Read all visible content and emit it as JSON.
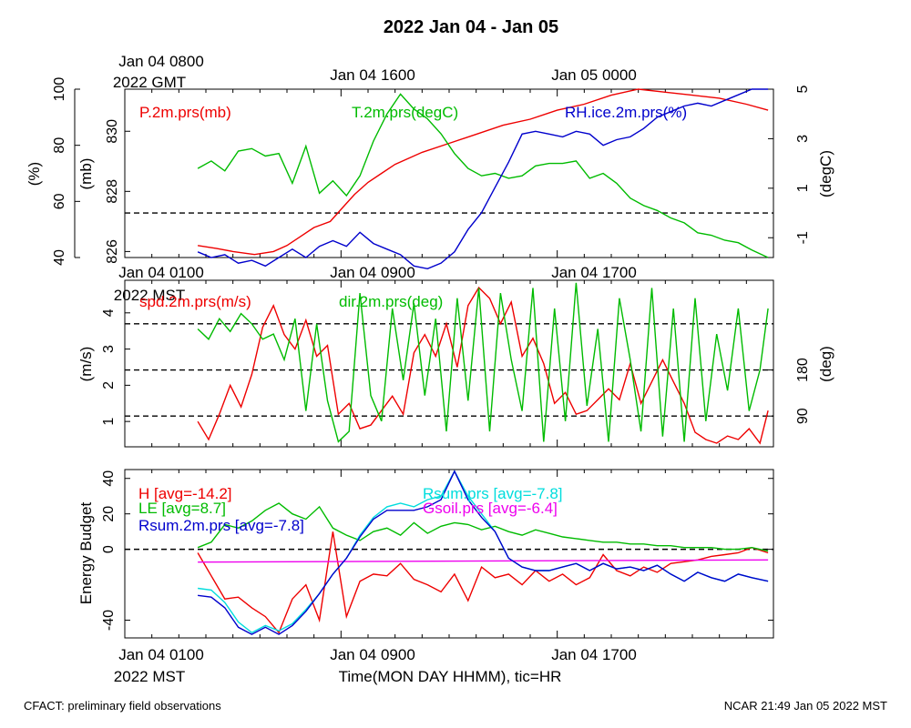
{
  "title": "2022 Jan 04 - Jan 05",
  "footer": {
    "left": "CFACT: preliminary field observations",
    "right": "NCAR 21:49 Jan 05 2022 MST"
  },
  "gmt_axis": {
    "labels": [
      "Jan 04 0800",
      "Jan 04 1600",
      "Jan 05 0000"
    ],
    "year_label": "2022 GMT"
  },
  "mst_axis": {
    "labels": [
      "Jan 04 0100",
      "Jan 04 0900",
      "Jan 04 1700"
    ],
    "year_label": "2022 MST"
  },
  "xlabel": "Time(MON DAY HHMM), tic=HR",
  "colors": {
    "red": "#ee0000",
    "green": "#00bb00",
    "blue": "#0000cc",
    "cyan": "#00dddd",
    "magenta": "#ee00ee"
  },
  "chart_data": [
    {
      "type": "line",
      "panel": "top",
      "x_unit": "hours since Jan 04 0100 MST",
      "xlim": [
        0,
        24
      ],
      "axes": {
        "pressure": {
          "label": "(mb)",
          "ticks": [
            "826",
            "828",
            "830"
          ],
          "ylim": [
            825.8,
            831.4
          ]
        },
        "rh": {
          "label": "(%)",
          "ticks": [
            "40",
            "60",
            "80",
            "100"
          ],
          "ylim": [
            40,
            100
          ]
        },
        "temperature": {
          "label": "(degC)",
          "ticks": [
            "-1",
            "1",
            "3",
            "5"
          ],
          "ylim": [
            -1.8,
            5
          ]
        }
      },
      "reference_line": 0,
      "series": [
        {
          "name": "P.2m.prs(mb)",
          "axis": "pressure",
          "color": "#ee0000",
          "x": [
            2.7,
            3.4,
            4,
            4.8,
            5.5,
            6,
            6.5,
            7,
            7.6,
            8,
            8.5,
            9,
            9.5,
            10,
            11,
            12,
            13,
            14,
            15,
            16,
            17,
            18,
            19,
            20,
            21,
            22,
            23,
            23.8
          ],
          "values": [
            826.2,
            826.1,
            826,
            825.9,
            826,
            826.2,
            826.5,
            826.8,
            827,
            827.4,
            827.9,
            828.3,
            828.6,
            828.9,
            829.3,
            829.6,
            829.9,
            830.2,
            830.4,
            830.7,
            830.9,
            831.2,
            831.4,
            831.3,
            831.2,
            831.1,
            830.9,
            830.7
          ]
        },
        {
          "name": "T.2m.prs(degC)",
          "axis": "temperature",
          "color": "#00bb00",
          "x": [
            2.7,
            3.2,
            3.7,
            4.2,
            4.7,
            5.2,
            5.7,
            6.2,
            6.7,
            7.2,
            7.7,
            8.2,
            8.7,
            9.2,
            9.7,
            10.2,
            10.7,
            11.2,
            11.7,
            12.2,
            12.7,
            13.2,
            13.7,
            14.2,
            14.7,
            15.2,
            15.7,
            16.2,
            16.7,
            17.2,
            17.7,
            18.2,
            18.7,
            19.2,
            19.7,
            20.2,
            20.7,
            21.2,
            21.7,
            22.2,
            22.7,
            23.2,
            23.8
          ],
          "values": [
            1.8,
            2.1,
            1.7,
            2.5,
            2.6,
            2.3,
            2.4,
            1.2,
            2.7,
            0.8,
            1.3,
            0.7,
            1.5,
            2.9,
            4,
            4.8,
            4.2,
            3.8,
            3.2,
            2.4,
            1.8,
            1.5,
            1.6,
            1.4,
            1.5,
            1.9,
            2,
            2,
            2.1,
            1.4,
            1.6,
            1.2,
            0.6,
            0.3,
            0.1,
            -0.2,
            -0.4,
            -0.8,
            -0.9,
            -1.1,
            -1.2,
            -1.5,
            -1.8
          ]
        },
        {
          "name": "RH.ice.2m.prs(%)",
          "axis": "rh",
          "color": "#0000cc",
          "x": [
            2.7,
            3.2,
            3.7,
            4.2,
            4.7,
            5.2,
            5.7,
            6.2,
            6.7,
            7.2,
            7.7,
            8.2,
            8.7,
            9.2,
            9.7,
            10.2,
            10.7,
            11.2,
            11.7,
            12.2,
            12.7,
            13.2,
            13.7,
            14.2,
            14.7,
            15.2,
            15.7,
            16.2,
            16.7,
            17.2,
            17.7,
            18.2,
            18.7,
            19.2,
            19.7,
            20.2,
            20.7,
            21.2,
            21.7,
            22.2,
            22.7,
            23.2,
            23.8
          ],
          "values": [
            42,
            40,
            41,
            38,
            39,
            37,
            40,
            43,
            40,
            44,
            46,
            44,
            49,
            45,
            43,
            41,
            37,
            36,
            38,
            42,
            50,
            56,
            65,
            74,
            84,
            85,
            84,
            83,
            85,
            84,
            80,
            82,
            83,
            86,
            90,
            92,
            94,
            95,
            94,
            96,
            98,
            100,
            100
          ]
        }
      ]
    },
    {
      "type": "line",
      "panel": "middle",
      "x_unit": "hours since Jan 04 0100 MST",
      "xlim": [
        0,
        24
      ],
      "axes": {
        "speed": {
          "label": "(m/s)",
          "ticks": [
            "1",
            "2",
            "3",
            "4"
          ],
          "ylim": [
            0.3,
            4.9
          ]
        },
        "direction": {
          "label": "(deg)",
          "ticks": [
            "90",
            "180"
          ],
          "ylim": [
            30,
            355
          ]
        }
      },
      "reference_lines_deg": [
        90,
        180,
        270
      ],
      "series": [
        {
          "name": "spd.2m.prs(m/s)",
          "axis": "speed",
          "color": "#ee0000",
          "x": [
            2.7,
            3.1,
            3.5,
            3.9,
            4.3,
            4.7,
            5.1,
            5.5,
            5.9,
            6.3,
            6.7,
            7.1,
            7.5,
            7.9,
            8.3,
            8.7,
            9.1,
            9.5,
            9.9,
            10.3,
            10.7,
            11.1,
            11.5,
            11.9,
            12.3,
            12.7,
            13.1,
            13.5,
            13.9,
            14.3,
            14.7,
            15.1,
            15.5,
            15.9,
            16.3,
            16.7,
            17.1,
            17.5,
            17.9,
            18.3,
            18.7,
            19.1,
            19.5,
            19.9,
            20.3,
            20.7,
            21.1,
            21.5,
            21.9,
            22.3,
            22.7,
            23.1,
            23.5,
            23.8
          ],
          "values": [
            1,
            0.5,
            1.2,
            2,
            1.4,
            2.3,
            3.6,
            4.2,
            3.4,
            3,
            3.8,
            2.8,
            3.1,
            1.2,
            1.5,
            0.8,
            0.9,
            1.3,
            1.7,
            1.2,
            2.9,
            3.4,
            2.8,
            3.7,
            2.5,
            4.2,
            4.7,
            4.4,
            3.7,
            4.3,
            2.8,
            3.3,
            2.6,
            1.5,
            1.8,
            1.2,
            1.3,
            1.6,
            1.9,
            1.6,
            2.6,
            1.5,
            2.1,
            2.7,
            2.1,
            1.5,
            0.7,
            0.5,
            0.4,
            0.6,
            0.5,
            0.8,
            0.4,
            1.3
          ]
        },
        {
          "name": "dir.2m.prs(deg)",
          "axis": "direction",
          "color": "#00bb00",
          "x": [
            2.7,
            3.1,
            3.5,
            3.9,
            4.3,
            4.7,
            5.1,
            5.5,
            5.9,
            6.3,
            6.7,
            7.1,
            7.5,
            7.9,
            8.3,
            8.7,
            9.1,
            9.5,
            9.9,
            10.3,
            10.7,
            11.1,
            11.5,
            11.9,
            12.3,
            12.7,
            13.1,
            13.5,
            13.9,
            14.3,
            14.7,
            15.1,
            15.5,
            15.9,
            16.3,
            16.7,
            17.1,
            17.5,
            17.9,
            18.3,
            18.7,
            19.1,
            19.5,
            19.9,
            20.3,
            20.7,
            21.1,
            21.5,
            21.9,
            22.3,
            22.7,
            23.1,
            23.5,
            23.8
          ],
          "values": [
            260,
            240,
            280,
            255,
            290,
            270,
            240,
            250,
            200,
            280,
            100,
            270,
            120,
            40,
            60,
            330,
            130,
            80,
            300,
            160,
            310,
            130,
            280,
            60,
            320,
            120,
            340,
            60,
            330,
            200,
            100,
            340,
            40,
            300,
            80,
            350,
            110,
            260,
            40,
            320,
            200,
            60,
            340,
            50,
            300,
            40,
            320,
            80,
            250,
            140,
            300,
            100,
            180,
            300
          ]
        }
      ]
    },
    {
      "type": "line",
      "panel": "bottom",
      "ylabel": "Energy Budget",
      "x_unit": "hours since Jan 04 0100 MST",
      "xlim": [
        0,
        24
      ],
      "ylim": [
        -50,
        45
      ],
      "yticks": [
        "-40",
        "0",
        "20",
        "40"
      ],
      "reference_line": 0,
      "series": [
        {
          "name": "H",
          "legend": "[avg=-14.2]",
          "color": "#ee0000",
          "x": [
            2.7,
            3.2,
            3.7,
            4.2,
            4.7,
            5.2,
            5.7,
            6.2,
            6.7,
            7.2,
            7.7,
            8.2,
            8.7,
            9.2,
            9.7,
            10.2,
            10.7,
            11.2,
            11.7,
            12.2,
            12.7,
            13.2,
            13.7,
            14.2,
            14.7,
            15.2,
            15.7,
            16.2,
            16.7,
            17.2,
            17.7,
            18.2,
            18.7,
            19.2,
            19.7,
            20.2,
            20.7,
            21.2,
            21.7,
            22.2,
            22.7,
            23.2,
            23.8
          ],
          "values": [
            -2,
            -15,
            -28,
            -27,
            -33,
            -38,
            -47,
            -28,
            -20,
            -40,
            10,
            -38,
            -18,
            -14,
            -15,
            -8,
            -17,
            -20,
            -24,
            -14,
            -29,
            -10,
            -16,
            -14,
            -20,
            -12,
            -18,
            -14,
            -20,
            -16,
            -3,
            -12,
            -15,
            -10,
            -13,
            -8,
            -7,
            -6,
            -4,
            -3,
            -2,
            1,
            -2
          ]
        },
        {
          "name": "LE",
          "legend": "[avg=8.7]",
          "color": "#00bb00",
          "x": [
            2.7,
            3.2,
            3.7,
            4.2,
            4.7,
            5.2,
            5.7,
            6.2,
            6.7,
            7.2,
            7.7,
            8.2,
            8.7,
            9.2,
            9.7,
            10.2,
            10.7,
            11.2,
            11.7,
            12.2,
            12.7,
            13.2,
            13.7,
            14.2,
            14.7,
            15.2,
            15.7,
            16.2,
            16.7,
            17.2,
            17.7,
            18.2,
            18.7,
            19.2,
            19.7,
            20.2,
            20.7,
            21.2,
            21.7,
            22.2,
            22.7,
            23.2,
            23.8
          ],
          "values": [
            1,
            4,
            14,
            12,
            16,
            22,
            26,
            20,
            17,
            24,
            12,
            8,
            5,
            10,
            12,
            8,
            15,
            9,
            13,
            15,
            14,
            11,
            13,
            10,
            8,
            11,
            9,
            7,
            6,
            5,
            4,
            4,
            3,
            3,
            2,
            2,
            1,
            1,
            1,
            0,
            0,
            1,
            -1
          ]
        },
        {
          "name": "Rsum.prs",
          "legend": "[avg=-7.8]",
          "color": "#00dddd",
          "x": [
            2.7,
            3.2,
            3.7,
            4.2,
            4.7,
            5.2,
            5.7,
            6.2,
            6.7,
            7.2,
            7.7,
            8.2,
            8.7,
            9.2,
            9.7,
            10.2,
            10.7,
            11.2,
            11.7,
            12.2,
            12.7,
            13.2,
            13.7,
            14.2,
            14.7,
            15.2,
            15.7,
            16.2,
            16.7,
            17.2,
            17.7,
            18.2,
            18.7,
            19.2,
            19.7,
            20.2,
            20.7,
            21.2,
            21.7,
            22.2,
            22.7,
            23.2,
            23.8
          ],
          "values": [
            -22,
            -23,
            -30,
            -41,
            -47,
            -43,
            -46,
            -42,
            -34,
            -25,
            -14,
            -5,
            8,
            18,
            24,
            26,
            24,
            28,
            30,
            44,
            30,
            20,
            10,
            -5,
            -10,
            -12,
            -12,
            -10,
            -8,
            -12,
            -8,
            -11,
            -10,
            -12,
            -9,
            -14,
            -18,
            -13,
            -16,
            -18,
            -14,
            -16,
            -18
          ]
        },
        {
          "name": "Gsoil.prs",
          "legend": "[avg=-6.4]",
          "color": "#ee00ee",
          "x": [
            2.7,
            23.8
          ],
          "values": [
            -7.2,
            -6.0
          ]
        },
        {
          "name": "Rsum.2m.prs",
          "legend": "[avg=-7.8]",
          "color": "#0000cc",
          "x": [
            2.7,
            3.2,
            3.7,
            4.2,
            4.7,
            5.2,
            5.7,
            6.2,
            6.7,
            7.2,
            7.7,
            8.2,
            8.7,
            9.2,
            9.7,
            10.2,
            10.7,
            11.2,
            11.7,
            12.2,
            12.7,
            13.2,
            13.7,
            14.2,
            14.7,
            15.2,
            15.7,
            16.2,
            16.7,
            17.2,
            17.7,
            18.2,
            18.7,
            19.2,
            19.7,
            20.2,
            20.7,
            21.2,
            21.7,
            22.2,
            22.7,
            23.2,
            23.8
          ],
          "values": [
            -26,
            -27,
            -33,
            -44,
            -48,
            -44,
            -48,
            -43,
            -35,
            -25,
            -14,
            -5,
            7,
            17,
            22,
            22,
            22,
            24,
            28,
            44,
            28,
            18,
            10,
            -5,
            -10,
            -12,
            -12,
            -10,
            -8,
            -12,
            -8,
            -11,
            -10,
            -12,
            -9,
            -14,
            -18,
            -13,
            -16,
            -18,
            -14,
            -16,
            -18
          ]
        }
      ]
    }
  ]
}
